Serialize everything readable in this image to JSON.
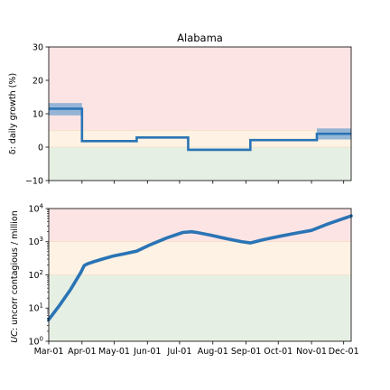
{
  "chart_data": [
    {
      "type": "line",
      "drawstyle": "steps-post",
      "title": "Alabama",
      "xlabel": "",
      "ylabel": "δ: daily growth (%)",
      "ylim": [
        -10,
        30
      ],
      "yticks": [
        -10,
        0,
        10,
        20,
        30
      ],
      "ytick_labels": [
        "−10",
        "0",
        "10",
        "20",
        "30"
      ],
      "xlim": [
        0,
        282
      ],
      "zones": [
        {
          "name": "high",
          "from": 5,
          "to": 30,
          "color": "#fde4e4"
        },
        {
          "name": "medium",
          "from": 0,
          "to": 5,
          "color": "#fdf2e3"
        },
        {
          "name": "low",
          "from": -10,
          "to": 0,
          "color": "#e6efe3"
        }
      ],
      "series": [
        {
          "name": "daily growth",
          "color": "#2a74b5",
          "band_color": "#6a9fd0",
          "segments": [
            {
              "start": 0,
              "end": 31,
              "value": 11.5,
              "low": 9.5,
              "high": 13.2
            },
            {
              "start": 31,
              "end": 82,
              "value": 1.8,
              "low": 1.5,
              "high": 2.1
            },
            {
              "start": 82,
              "end": 130,
              "value": 2.9,
              "low": 2.7,
              "high": 3.1
            },
            {
              "start": 130,
              "end": 188,
              "value": -0.8,
              "low": -1.0,
              "high": -0.6
            },
            {
              "start": 188,
              "end": 250,
              "value": 2.1,
              "low": 1.9,
              "high": 2.3
            },
            {
              "start": 250,
              "end": 282,
              "value": 4.0,
              "low": 2.3,
              "high": 5.6
            }
          ]
        }
      ]
    },
    {
      "type": "line",
      "yscale": "log",
      "title": "",
      "xlabel": "",
      "ylabel_prefix": "UC",
      "ylabel_suffix": ": uncorr contagious / million",
      "ylim": [
        1,
        10000
      ],
      "yticks": [
        1,
        10,
        100,
        1000,
        10000
      ],
      "ytick_exponents": [
        "0",
        "1",
        "2",
        "3",
        "4"
      ],
      "ytick_base": "10",
      "xlim": [
        0,
        282
      ],
      "x_tick_positions": [
        0,
        31,
        61,
        92,
        122,
        153,
        184,
        214,
        245,
        275
      ],
      "categories": [
        "Mar-01",
        "Apr-01",
        "May-01",
        "Jun-01",
        "Jul-01",
        "Aug-01",
        "Sep-01",
        "Oct-01",
        "Nov-01",
        "Dec-01"
      ],
      "zones": [
        {
          "name": "high",
          "from": 1000,
          "to": 10000,
          "color": "#fde4e4"
        },
        {
          "name": "medium",
          "from": 100,
          "to": 1000,
          "color": "#fdf2e3"
        },
        {
          "name": "low",
          "from": 1,
          "to": 100,
          "color": "#e6efe3"
        }
      ],
      "series": [
        {
          "name": "uncorr contagious / million",
          "color": "#2a74b5",
          "x": [
            0,
            10,
            20,
            30,
            33,
            36,
            42,
            50,
            60,
            70,
            82,
            95,
            110,
            125,
            133,
            138,
            150,
            165,
            180,
            188,
            200,
            215,
            230,
            245,
            260,
            270,
            282
          ],
          "y": [
            4.5,
            12,
            35,
            120,
            190,
            215,
            250,
            300,
            370,
            430,
            520,
            820,
            1300,
            1900,
            2000,
            1900,
            1600,
            1250,
            1000,
            920,
            1150,
            1450,
            1800,
            2200,
            3400,
            4400,
            6000
          ]
        }
      ]
    }
  ]
}
